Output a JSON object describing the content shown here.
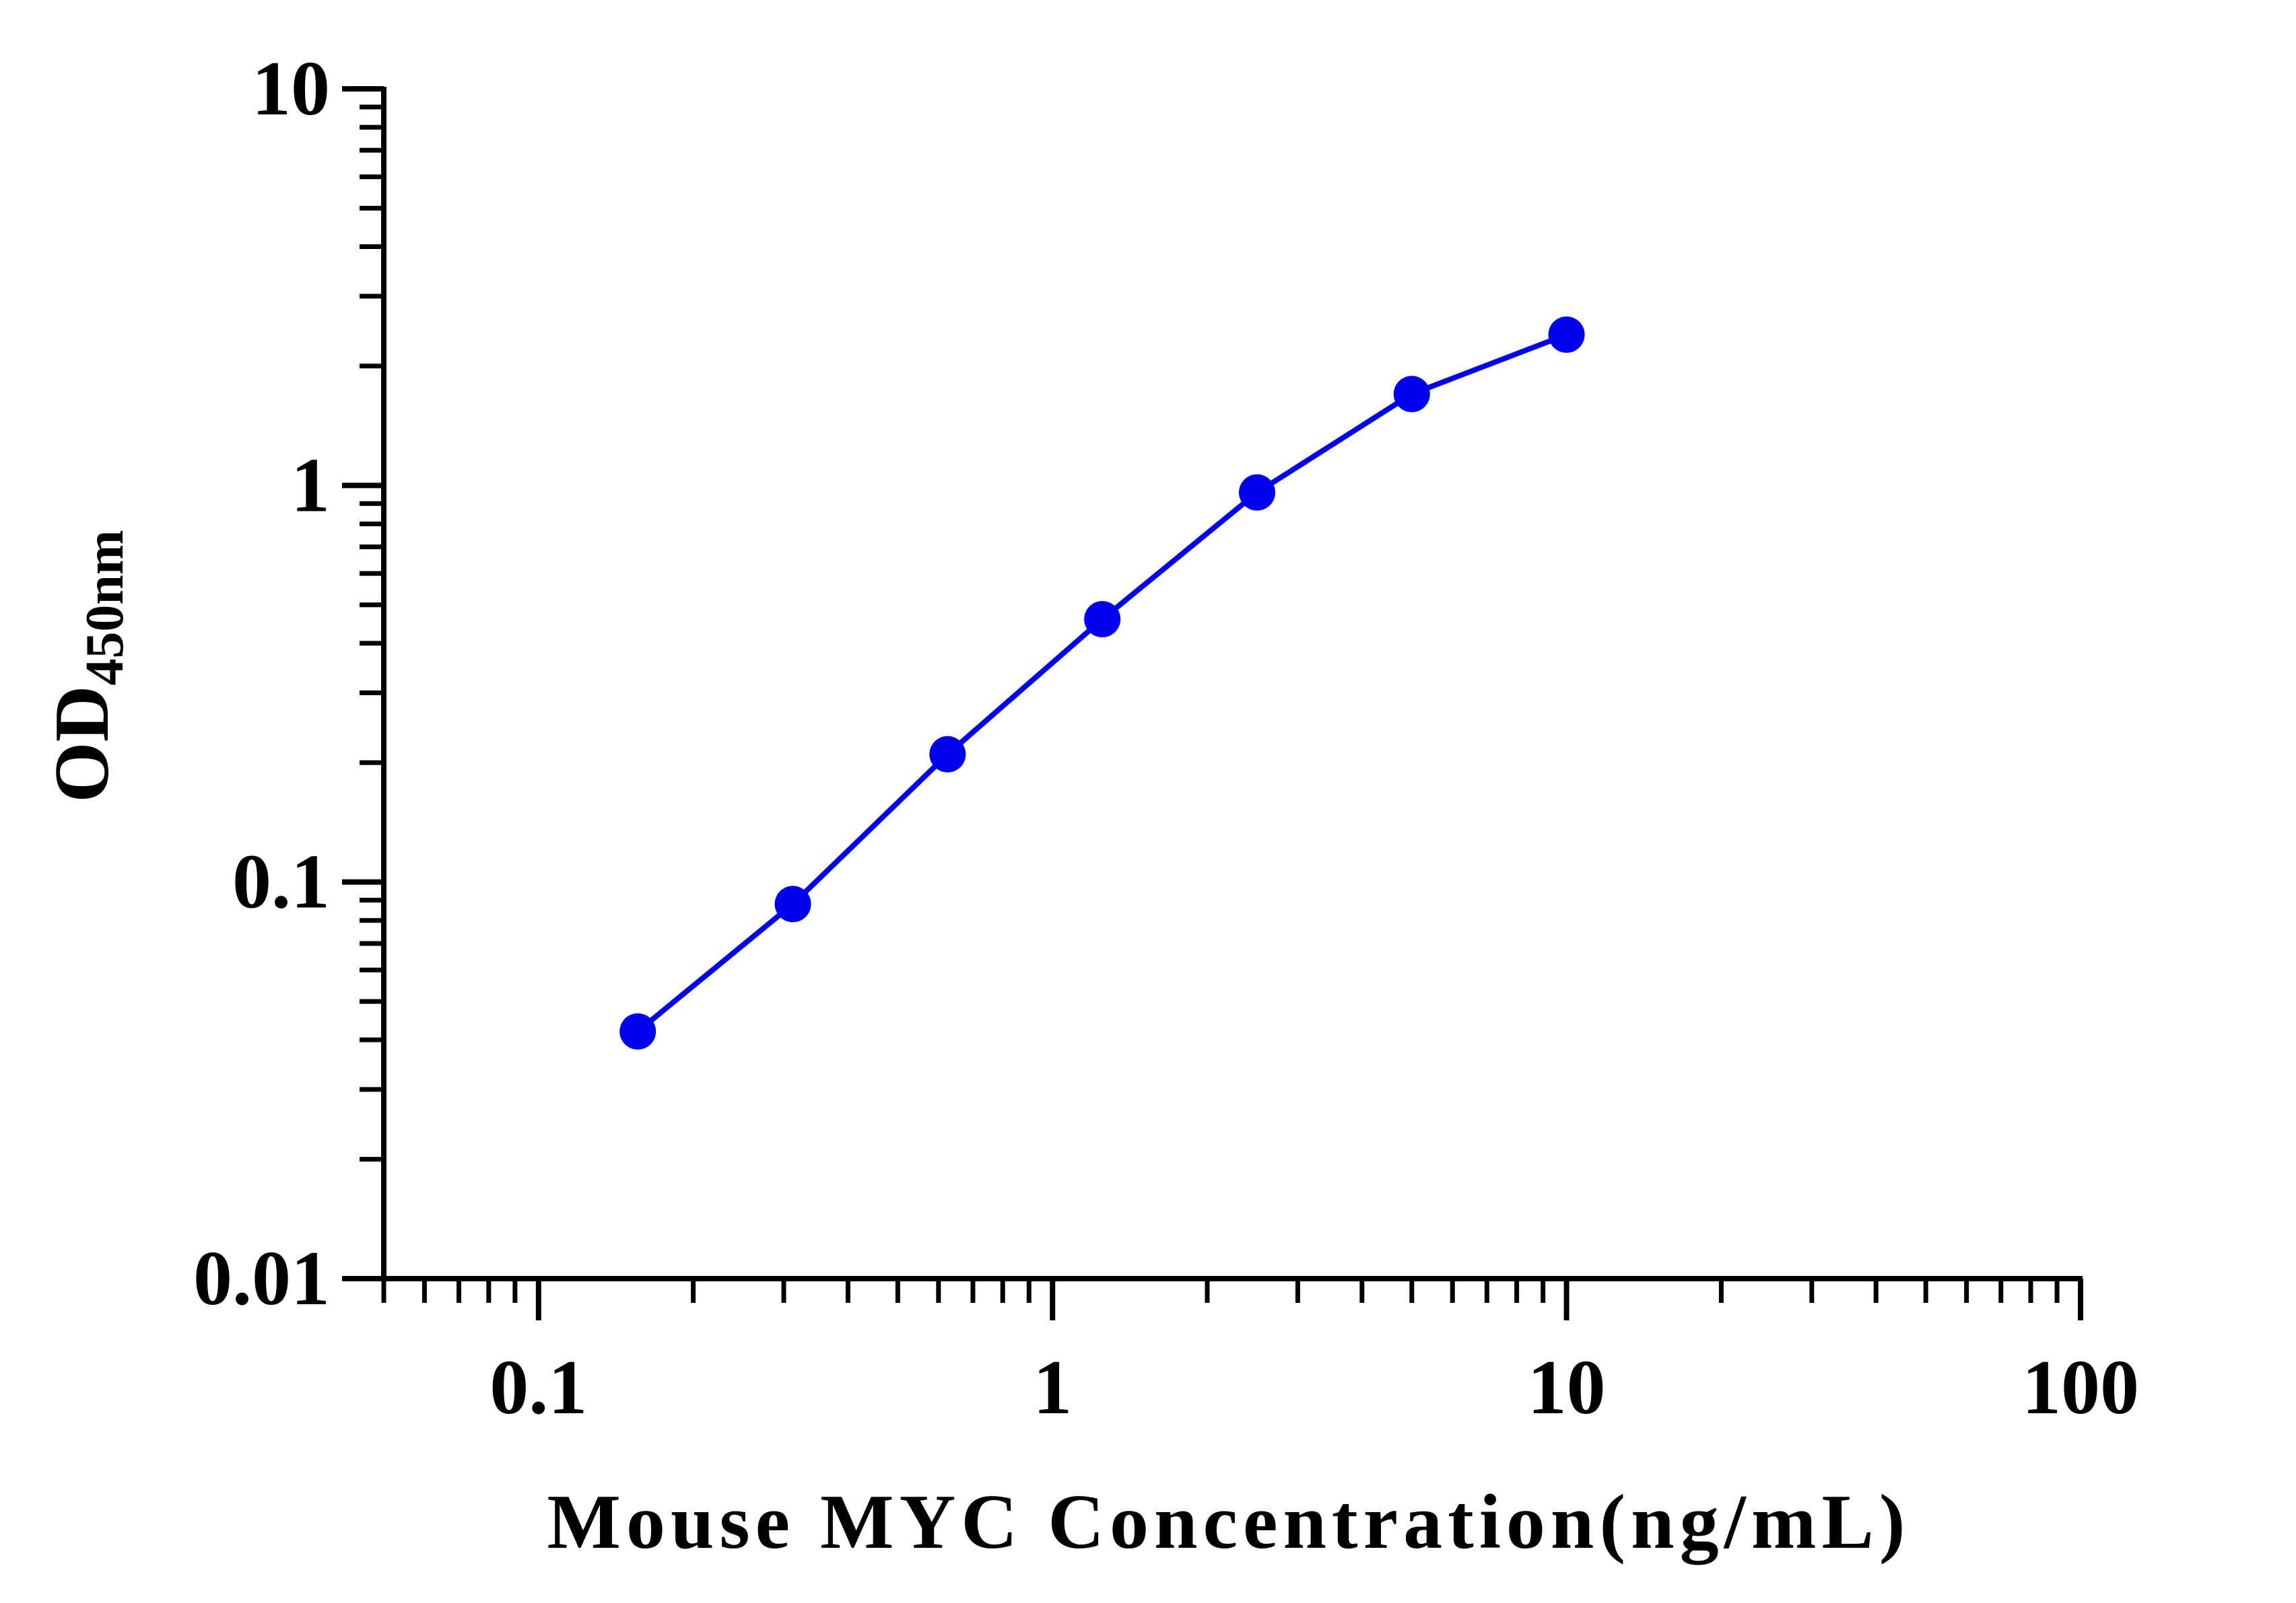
{
  "chart_data": {
    "type": "line",
    "xlabel": "Mouse MYC Concentration(ng/mL)",
    "ylabel_main": "OD",
    "ylabel_sub": "450nm",
    "x_scale": "log",
    "y_scale": "log",
    "xlim": [
      0.05,
      100
    ],
    "ylim": [
      0.01,
      10
    ],
    "x_ticks": [
      {
        "value": 0.1,
        "label": "0.1"
      },
      {
        "value": 1,
        "label": "1"
      },
      {
        "value": 10,
        "label": "10"
      },
      {
        "value": 100,
        "label": "100"
      }
    ],
    "y_ticks": [
      {
        "value": 0.01,
        "label": "0.01"
      },
      {
        "value": 0.1,
        "label": "0.1"
      },
      {
        "value": 1,
        "label": "1"
      },
      {
        "value": 10,
        "label": "10"
      }
    ],
    "grid": false,
    "series": [
      {
        "color": "#0000ee",
        "x": [
          0.156,
          0.3125,
          0.625,
          1.25,
          2.5,
          5,
          10
        ],
        "y": [
          0.042,
          0.088,
          0.21,
          0.46,
          0.96,
          1.7,
          2.4
        ]
      }
    ]
  }
}
